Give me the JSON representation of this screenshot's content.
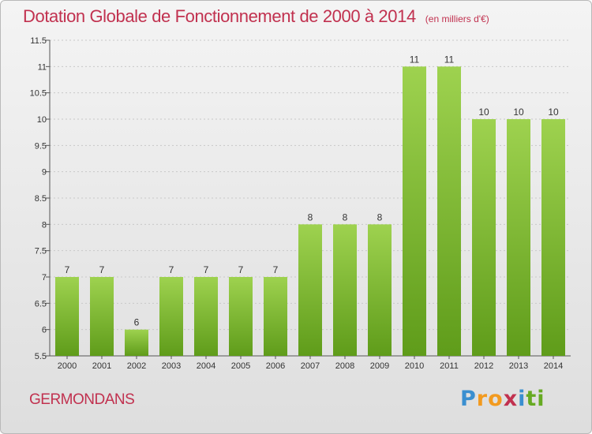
{
  "title": "Dotation Globale de Fonctionnement de 2000 à 2014",
  "subtitle": "(en milliers d'€)",
  "commune": "GERMONDANS",
  "logo": {
    "letters": [
      "P",
      "r",
      "o",
      "x",
      "i",
      "t",
      "i"
    ],
    "colors": [
      "#3a8fd0",
      "#f29a1f",
      "#f29a1f",
      "#c1314f",
      "#3a8fd0",
      "#66aa22",
      "#66aa22"
    ]
  },
  "colors": {
    "title": "#c1314f",
    "bar_top": "#9ed24f",
    "bar_bottom": "#5f9c1a",
    "grid": "#c8c8c8"
  },
  "chart_data": {
    "type": "bar",
    "title": "Dotation Globale de Fonctionnement de 2000 à 2014",
    "subtitle": "(en milliers d'€)",
    "categories": [
      "2000",
      "2001",
      "2002",
      "2003",
      "2004",
      "2005",
      "2006",
      "2007",
      "2008",
      "2009",
      "2010",
      "2011",
      "2012",
      "2013",
      "2014"
    ],
    "values": [
      7,
      7,
      6,
      7,
      7,
      7,
      7,
      8,
      8,
      8,
      11,
      11,
      10,
      10,
      10
    ],
    "data_labels": [
      "7",
      "7",
      "6",
      "7",
      "7",
      "7",
      "7",
      "8",
      "8",
      "8",
      "11",
      "11",
      "10",
      "10",
      "10"
    ],
    "ylim": [
      5.5,
      11.5
    ],
    "yticks": [
      5.5,
      6,
      6.5,
      7,
      7.5,
      8,
      8.5,
      9,
      9.5,
      10,
      10.5,
      11,
      11.5
    ],
    "ytick_labels": [
      "5.5",
      "6",
      "6.5",
      "7",
      "7.5",
      "8",
      "8.5",
      "9",
      "9.5",
      "10",
      "10.5",
      "11",
      "11.5"
    ],
    "grid": true,
    "legend": "none"
  }
}
